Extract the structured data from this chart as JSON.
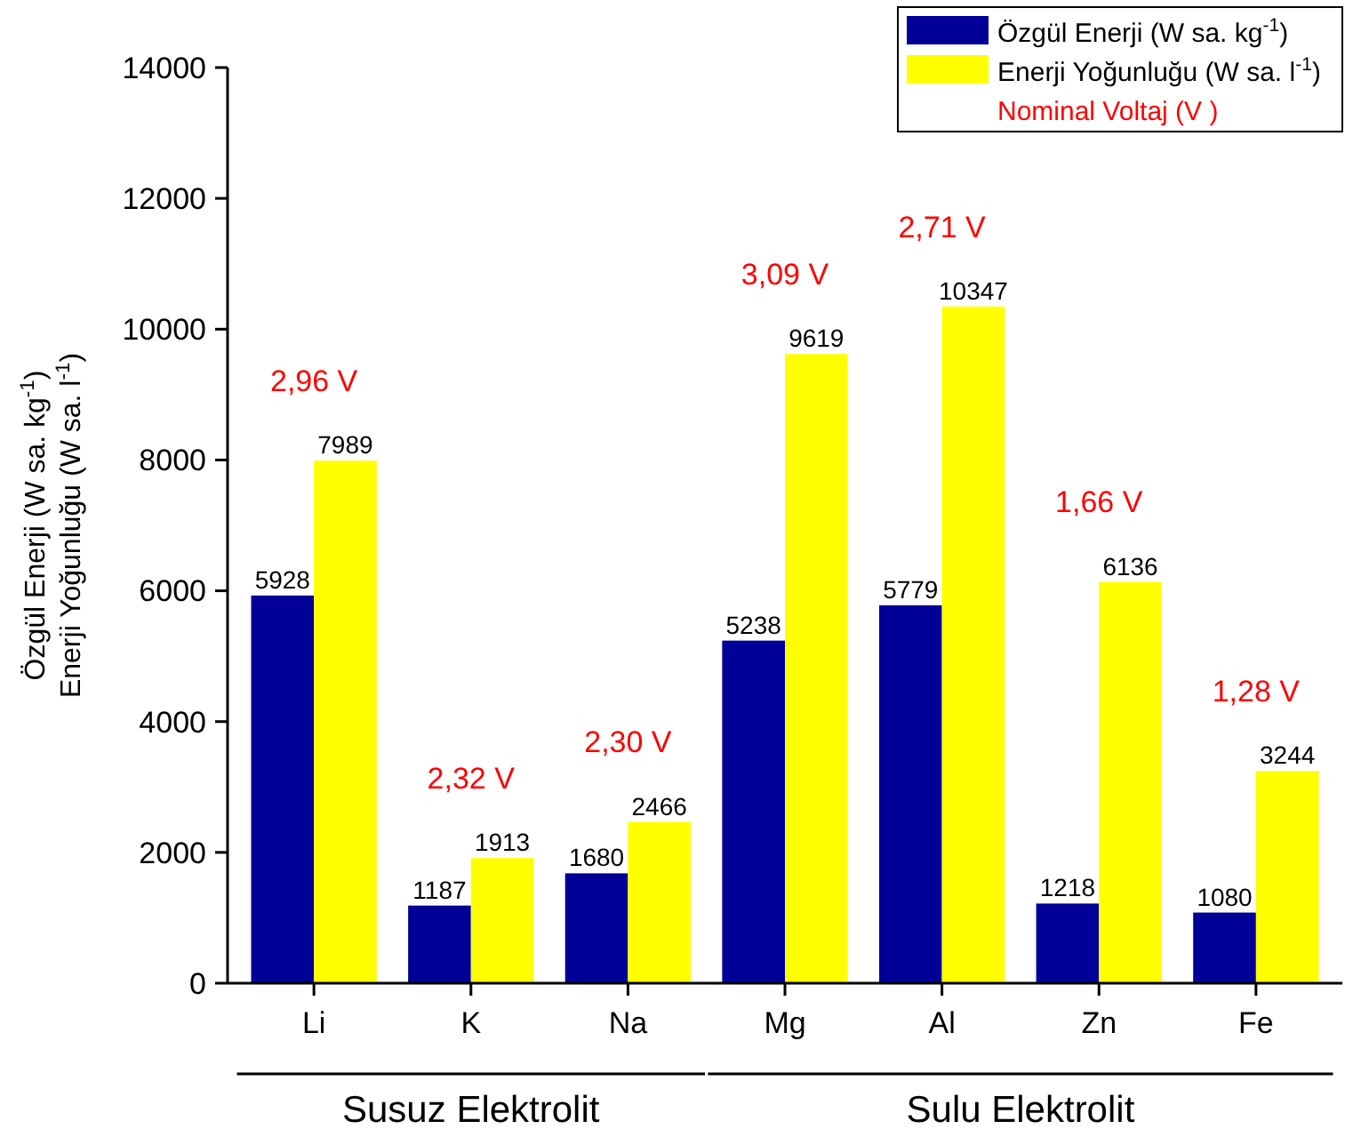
{
  "chart_data": {
    "type": "bar",
    "ylabel": "Özgül Enerji (W sa. kg$^{-1}$)\nEnerji Yoğunluğu (W sa. l$^{-1}$)",
    "categories": [
      "Li",
      "K",
      "Na",
      "Mg",
      "Al",
      "Zn",
      "Fe"
    ],
    "series": [
      {
        "name": "Özgül Enerji (W sa. kg$^{-1}$)",
        "color": "#000099",
        "values": [
          5928,
          1187,
          1680,
          5238,
          5779,
          1218,
          1080
        ]
      },
      {
        "name": "Enerji Yoğunluğu (W sa. l$^{-1}$)",
        "color": "#ffff00",
        "values": [
          7989,
          1913,
          2466,
          9619,
          10347,
          6136,
          3244
        ]
      }
    ],
    "ylim": [
      0,
      14000
    ],
    "yticks": [
      0,
      2000,
      4000,
      6000,
      8000,
      10000,
      12000,
      14000
    ],
    "data_labels": true,
    "legend": "top right",
    "annotations": [
      "Nominal Voltaj (V )",
      "Susuz Elektrolit",
      "Sulu Elektrolit",
      "2,96 V",
      "2,32 V",
      "2,30 V",
      "3,09 V",
      "2,71 V",
      "1,66 V",
      "1,28 V"
    ]
  }
}
